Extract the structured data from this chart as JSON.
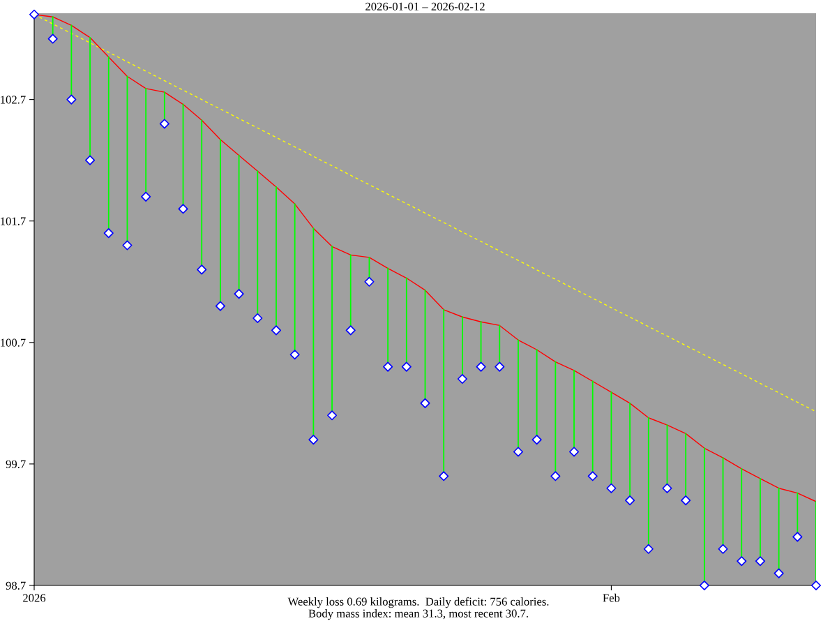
{
  "chart_data": {
    "type": "line",
    "title": "2026-01-01 – 2026-02-12",
    "x": [
      "2026-01-01",
      "2026-01-02",
      "2026-01-03",
      "2026-01-04",
      "2026-01-05",
      "2026-01-06",
      "2026-01-07",
      "2026-01-08",
      "2026-01-09",
      "2026-01-10",
      "2026-01-11",
      "2026-01-12",
      "2026-01-13",
      "2026-01-14",
      "2026-01-15",
      "2026-01-16",
      "2026-01-17",
      "2026-01-18",
      "2026-01-19",
      "2026-01-20",
      "2026-01-21",
      "2026-01-22",
      "2026-01-23",
      "2026-01-24",
      "2026-01-25",
      "2026-01-26",
      "2026-01-27",
      "2026-01-28",
      "2026-01-29",
      "2026-01-30",
      "2026-01-31",
      "2026-02-01",
      "2026-02-02",
      "2026-02-03",
      "2026-02-04",
      "2026-02-05",
      "2026-02-06",
      "2026-02-07",
      "2026-02-08",
      "2026-02-09",
      "2026-02-10",
      "2026-02-11",
      "2026-02-12"
    ],
    "series": [
      {
        "type": "line",
        "color": "#ffff00",
        "line_style": "dashed",
        "marker": "none",
        "x": [
          "2026-01-01",
          "2026-02-12"
        ],
        "values": [
          103.4,
          100.13
        ]
      },
      {
        "color": "#ff0000",
        "line_style": "solid",
        "marker": "none",
        "values": [
          103.4,
          103.38,
          103.31,
          103.21,
          103.05,
          102.89,
          102.79,
          102.76,
          102.66,
          102.53,
          102.37,
          102.24,
          102.11,
          101.98,
          101.84,
          101.64,
          101.49,
          101.42,
          101.4,
          101.31,
          101.23,
          101.13,
          100.97,
          100.91,
          100.87,
          100.84,
          100.72,
          100.64,
          100.54,
          100.47,
          100.38,
          100.29,
          100.2,
          100.08,
          100.02,
          99.95,
          99.83,
          99.75,
          99.66,
          99.58,
          99.5,
          99.46,
          99.39
        ]
      },
      {
        "type": "scatter",
        "color": "#00ff00",
        "marker": "diamond",
        "colors": [
          "#0000ff",
          "#0000ff",
          "#0000ff",
          "#0000ff",
          "#0000ff",
          "#0000ff",
          "#0000ff",
          "#0000ff",
          "#0000ff",
          "#0000ff",
          "#0000ff",
          "#0000ff",
          "#0000ff",
          "#0000ff",
          "#0000ff",
          "#0000ff",
          "#0000ff",
          "#0000ff",
          "#0000ff",
          "#0000ff",
          "#0000ff",
          "#0000ff",
          "#0000ff",
          "#0000ff",
          "#0000ff",
          "#0000ff",
          "#0000ff",
          "#0000ff",
          "#0000ff",
          "#0000ff",
          "#0000ff",
          "#0000ff",
          "#0000ff",
          "#0000ff",
          "#0000ff",
          "#0000ff",
          "#0000ff",
          "#0000ff",
          "#0000ff",
          "#0000ff",
          "#0000ff",
          "#0000ff",
          "#0000ff"
        ],
        "values": [
          103.4,
          103.2,
          102.7,
          102.2,
          101.6,
          101.5,
          101.9,
          102.5,
          101.8,
          101.3,
          101.0,
          101.1,
          100.9,
          100.8,
          100.6,
          99.9,
          100.1,
          100.8,
          101.2,
          100.5,
          100.5,
          100.2,
          99.6,
          100.4,
          100.5,
          100.5,
          99.8,
          99.9,
          99.6,
          99.8,
          99.6,
          99.5,
          99.4,
          99.0,
          99.5,
          99.4,
          98.7,
          99.0,
          98.9,
          98.9,
          98.8,
          99.1,
          98.7
        ],
        "errors": [
          [
            103.4,
            103.4
          ],
          [
            103.2,
            103.38
          ],
          [
            102.7,
            103.31
          ],
          [
            102.2,
            103.21
          ],
          [
            101.6,
            103.05
          ],
          [
            101.5,
            102.89
          ],
          [
            101.9,
            102.79
          ],
          [
            102.5,
            102.76
          ],
          [
            101.8,
            102.66
          ],
          [
            101.3,
            102.53
          ],
          [
            101.0,
            102.37
          ],
          [
            101.1,
            102.24
          ],
          [
            100.9,
            102.11
          ],
          [
            100.8,
            101.98
          ],
          [
            100.6,
            101.84
          ],
          [
            99.9,
            101.64
          ],
          [
            100.1,
            101.49
          ],
          [
            100.8,
            101.42
          ],
          [
            101.2,
            101.4
          ],
          [
            100.5,
            101.31
          ],
          [
            100.5,
            101.23
          ],
          [
            100.2,
            101.13
          ],
          [
            99.6,
            100.97
          ],
          [
            100.4,
            100.91
          ],
          [
            100.5,
            100.87
          ],
          [
            100.5,
            100.84
          ],
          [
            99.8,
            100.72
          ],
          [
            99.9,
            100.64
          ],
          [
            99.6,
            100.54
          ],
          [
            99.8,
            100.47
          ],
          [
            99.6,
            100.38
          ],
          [
            99.5,
            100.29
          ],
          [
            99.4,
            100.2
          ],
          [
            99.0,
            100.08
          ],
          [
            99.5,
            100.02
          ],
          [
            99.4,
            99.95
          ],
          [
            98.7,
            99.83
          ],
          [
            99.0,
            99.75
          ],
          [
            98.9,
            99.66
          ],
          [
            98.9,
            99.58
          ],
          [
            98.8,
            99.5
          ],
          [
            99.1,
            99.46
          ],
          [
            98.7,
            99.39
          ]
        ]
      }
    ],
    "xlim": [
      "2026-01-01",
      "2026-02-12"
    ],
    "xticks": [
      {
        "value": "2026-01-01",
        "label": "2026"
      },
      {
        "value": "2026-02-01",
        "label": "Feb"
      }
    ],
    "ylim": [
      98.7,
      103.41
    ],
    "yticks": [
      98.7,
      99.7,
      100.7,
      101.7,
      102.7
    ],
    "grid": false,
    "annotations": [
      "Weekly loss 0.69 kilograms.  Daily deficit: 756 calories.",
      "Body mass index: mean 31.3, most recent 30.7."
    ]
  }
}
